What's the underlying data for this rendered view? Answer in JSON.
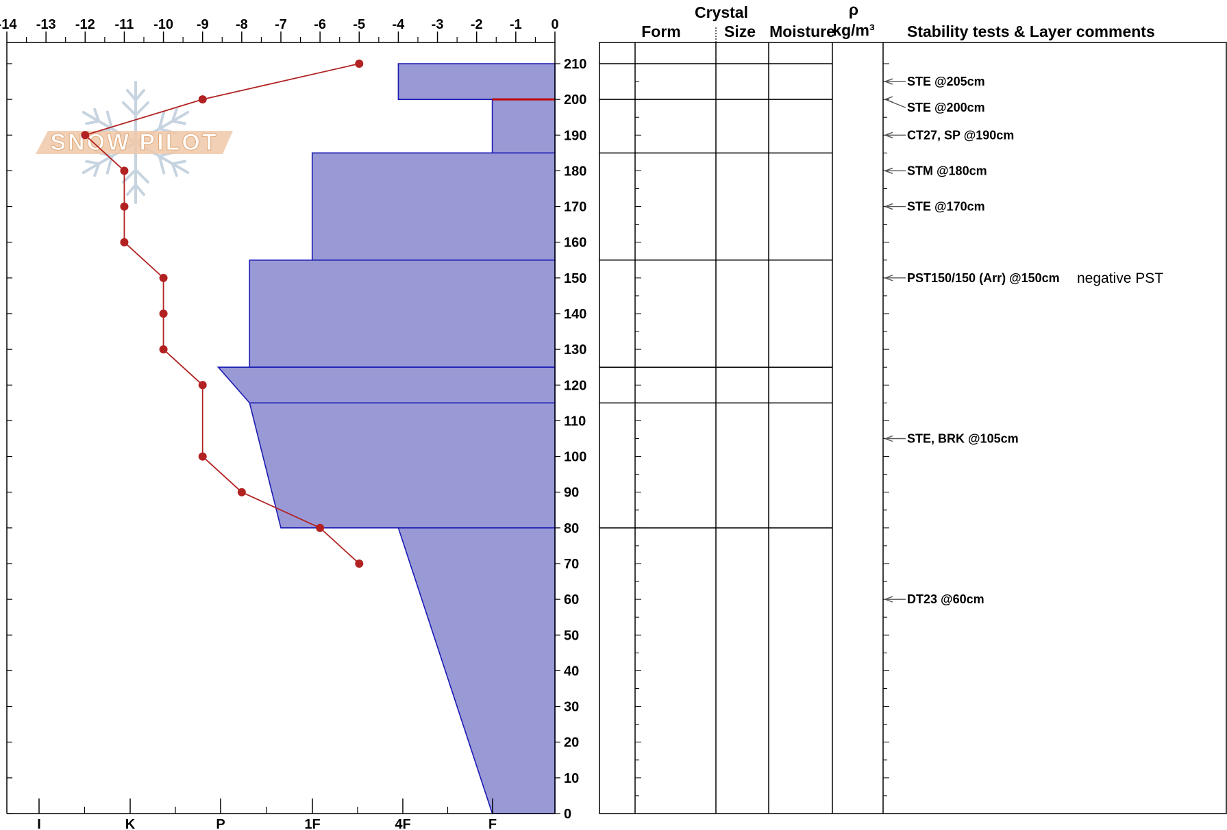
{
  "chart_data": {
    "type": "snow-profile",
    "temperature_axis": {
      "ticks": [
        "-14",
        "-13",
        "-12",
        "-11",
        "-10",
        "-9",
        "-8",
        "-7",
        "-6",
        "-5",
        "-4",
        "-3",
        "-2",
        "-1",
        "0"
      ],
      "range": [
        -14,
        0
      ]
    },
    "hardness_axis": {
      "ticks": [
        "I",
        "K",
        "P",
        "1F",
        "4F",
        "F"
      ]
    },
    "depth_axis": {
      "ticks": [
        "210",
        "200",
        "190",
        "180",
        "170",
        "160",
        "150",
        "140",
        "130",
        "120",
        "110",
        "100",
        "90",
        "80",
        "70",
        "60",
        "50",
        "40",
        "30",
        "20",
        "10",
        "0"
      ],
      "range": [
        0,
        210
      ]
    },
    "temperature_profile": {
      "depth_cm": [
        210,
        200,
        190,
        180,
        170,
        160,
        150,
        140,
        130,
        120,
        100,
        90,
        80,
        70
      ],
      "temp_c": [
        -5,
        -9,
        -12,
        -11,
        -11,
        -11,
        -10,
        -10,
        -10,
        -9,
        -9,
        -8,
        -6,
        -5
      ],
      "color": "#b22222"
    },
    "hardness_profile": {
      "color": "#9999d6",
      "edge_color": "#1a1ab3",
      "layers": [
        {
          "top": 210,
          "bottom": 200,
          "hardness_top": 4.0,
          "hardness_bottom": 4.0
        },
        {
          "top": 200,
          "bottom": 185,
          "hardness_top": 1.6,
          "hardness_bottom": 1.6
        },
        {
          "top": 185,
          "bottom": 155,
          "hardness_top": 6.2,
          "hardness_bottom": 6.2
        },
        {
          "top": 155,
          "bottom": 125,
          "hardness_top": 7.8,
          "hardness_bottom": 7.8
        },
        {
          "top": 125,
          "bottom": 115,
          "hardness_top": 8.6,
          "hardness_bottom": 7.8
        },
        {
          "top": 115,
          "bottom": 80,
          "hardness_top": 7.8,
          "hardness_bottom": 7.0
        },
        {
          "top": 80,
          "bottom": 0,
          "hardness_top": 4.0,
          "hardness_bottom": 1.6
        }
      ],
      "marker_depth": 200,
      "marker_color": "#c00000"
    },
    "headers": {
      "crystal": "Crystal",
      "form": "Form",
      "size": "Size",
      "moisture": "Moisture",
      "rho": "ρ",
      "density_unit": "kg/m³",
      "comments": "Stability tests & Layer comments"
    },
    "layer_boundaries_cm": [
      210,
      200,
      185,
      155,
      125,
      115,
      80
    ],
    "comments": [
      {
        "depth": 205,
        "text": "STE @205cm",
        "note": ""
      },
      {
        "depth": 200,
        "text": "STE @200cm",
        "note": ""
      },
      {
        "depth": 190,
        "text": "CT27, SP @190cm",
        "note": ""
      },
      {
        "depth": 180,
        "text": "STM @180cm",
        "note": ""
      },
      {
        "depth": 170,
        "text": "STE @170cm",
        "note": ""
      },
      {
        "depth": 150,
        "text": "PST150/150 (Arr) @150cm",
        "note": "negative PST"
      },
      {
        "depth": 105,
        "text": "STE, BRK @105cm",
        "note": ""
      },
      {
        "depth": 60,
        "text": "DT23 @60cm",
        "note": ""
      }
    ],
    "watermark": "SNOW PILOT"
  }
}
